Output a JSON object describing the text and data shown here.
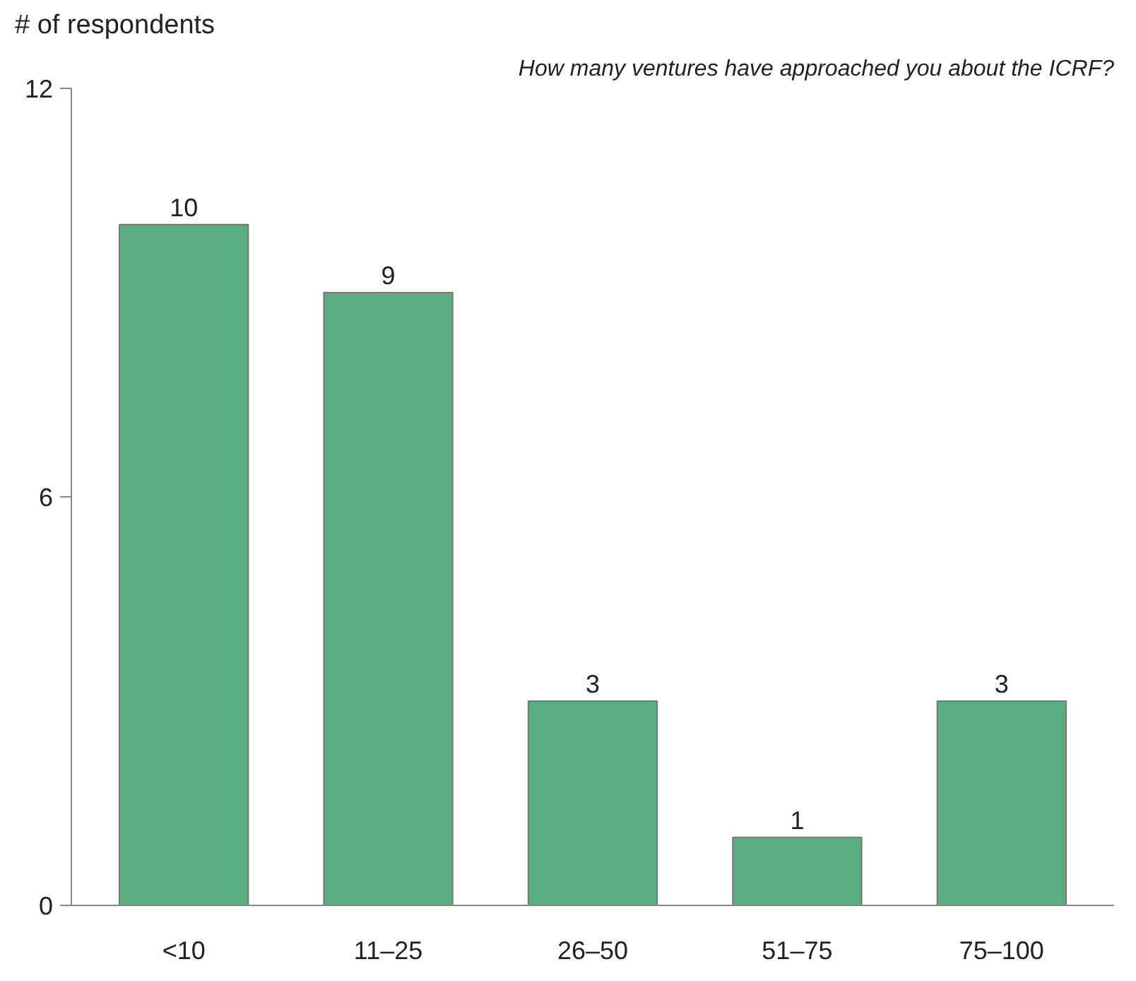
{
  "chart_data": {
    "type": "bar",
    "ylabel": "# of respondents",
    "subtitle": "How many ventures have approached you about the ICRF?",
    "categories": [
      "<10",
      "11–25",
      "26–50",
      "51–75",
      "75–100"
    ],
    "values": [
      10,
      9,
      3,
      1,
      3
    ],
    "color": "#5aad7f",
    "ylim": [
      0,
      12
    ],
    "yticks": [
      0,
      6,
      12
    ],
    "grid": false,
    "data_labels": true
  }
}
